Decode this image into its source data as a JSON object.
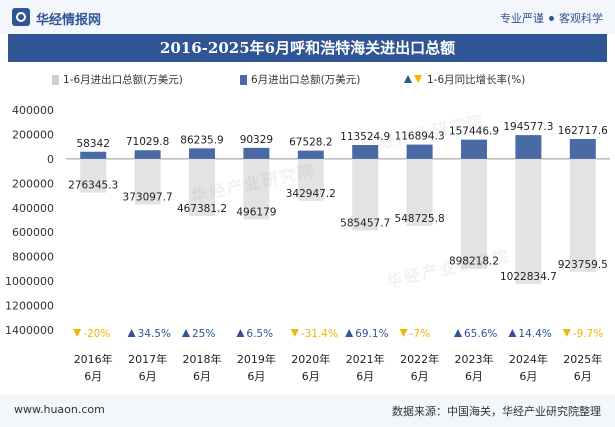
{
  "header": {
    "brand": "华经情报网",
    "tag_1": "专业严谨",
    "tag_2": "客观科学"
  },
  "watermark_text": "华经产业研究院",
  "chart_data": {
    "type": "bar",
    "title": "2016-2025年6月呼和浩特海关进出口总额",
    "categories": [
      "2016年\n6月",
      "2017年\n6月",
      "2018年\n6月",
      "2019年\n6月",
      "2020年\n6月",
      "2021年\n6月",
      "2022年\n6月",
      "2023年\n6月",
      "2024年\n6月",
      "2025年\n6月"
    ],
    "series": [
      {
        "name": "1-6月进出口总额(万美元)",
        "color": "#e3e3e3",
        "values": [
          276345.3,
          373097.7,
          467381.2,
          496179,
          342947.2,
          585457.7,
          548725.8,
          898218.2,
          1022834.7,
          923759.5
        ],
        "value_labels": [
          "276345.3",
          "373097.7",
          "467381.2",
          "496179",
          "342947.2",
          "585457.7",
          "548725.8",
          "898218.2",
          "1022834.7",
          "923759.5"
        ],
        "direction": "down"
      },
      {
        "name": "6月进出口总额(万美元)",
        "color": "#4a6aa5",
        "values": [
          58342,
          71029.8,
          86235.9,
          90329,
          67528.2,
          113524.9,
          116894.3,
          157446.9,
          194577.3,
          162717.6
        ],
        "value_labels": [
          "58342",
          "71029.8",
          "86235.9",
          "90329",
          "67528.2",
          "113524.9",
          "116894.3",
          "157446.9",
          "194577.3",
          "162717.6"
        ],
        "direction": "up"
      },
      {
        "name": "1-6月同比增长率(%)",
        "values": [
          -20,
          34.5,
          25,
          6.5,
          -31.4,
          69.1,
          -7,
          65.6,
          14.4,
          -9.7
        ],
        "value_labels": [
          "-20%",
          "34.5%",
          "25%",
          "6.5%",
          "-31.4%",
          "69.1%",
          "-7%",
          "65.6%",
          "14.4%",
          "-9.7%"
        ],
        "up_color": "#2f5594",
        "down_color": "#f2b400"
      }
    ],
    "yticks": [
      400000,
      200000,
      0,
      -200000,
      -400000,
      -600000,
      -800000,
      -1000000,
      -1200000,
      -1400000
    ],
    "ytick_labels": [
      "400000",
      "200000",
      "0",
      "200000",
      "400000",
      "600000",
      "800000",
      "1000000",
      "1200000",
      "1400000"
    ],
    "ylim": [
      -1400000,
      400000
    ],
    "legend_position": "top"
  },
  "footer": {
    "site": "www.huaon.com",
    "source": "数据来源：中国海关，华经产业研究院整理"
  }
}
